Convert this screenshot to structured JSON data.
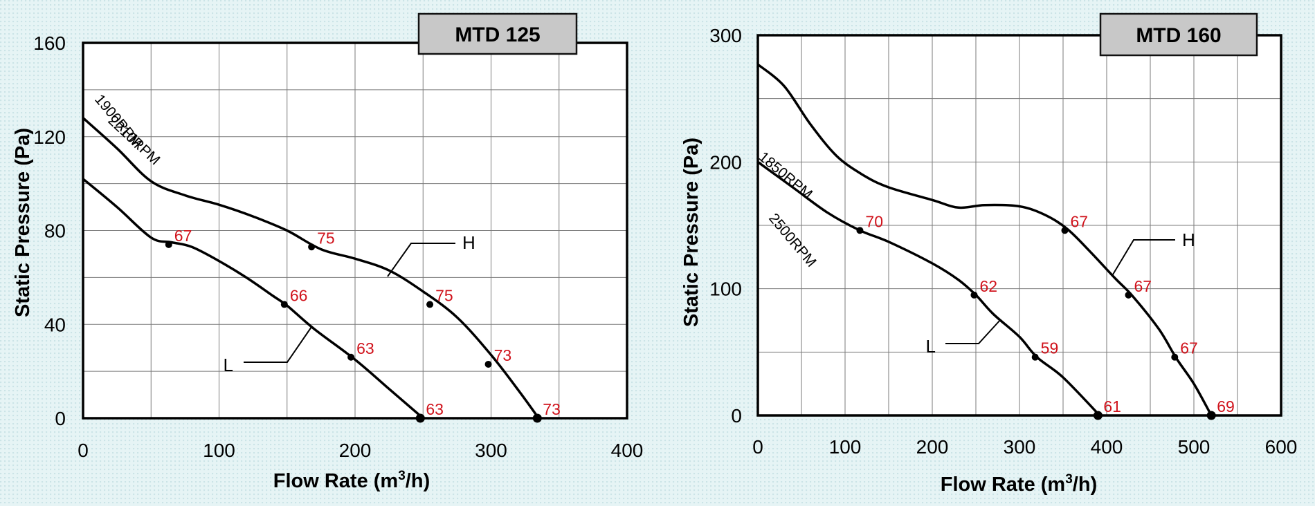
{
  "chart_data": [
    {
      "type": "line",
      "title": "MTD 125",
      "xlabel": "Flow Rate (m",
      "xlabel_sup": "3",
      "xlabel_tail": "/h)",
      "ylabel": "Static Pressure (Pa)",
      "xlim": [
        0,
        400
      ],
      "ylim": [
        0,
        160
      ],
      "x_major_ticks": [
        0,
        100,
        200,
        300,
        400
      ],
      "y_major_ticks": [
        0,
        40,
        80,
        120,
        160
      ],
      "x_grid_step": 50,
      "y_grid_step": 20,
      "grid": true,
      "series": [
        {
          "name": "2210RPM",
          "tag": "H",
          "values": [
            [
              0,
              128
            ],
            [
              25,
              115
            ],
            [
              50,
              101
            ],
            [
              75,
              95
            ],
            [
              100,
              91
            ],
            [
              125,
              86
            ],
            [
              150,
              80
            ],
            [
              175,
              72
            ],
            [
              200,
              68
            ],
            [
              225,
              63
            ],
            [
              250,
              54
            ],
            [
              275,
              43
            ],
            [
              300,
              27
            ],
            [
              320,
              12
            ],
            [
              335,
              0
            ]
          ],
          "markers": [
            {
              "x": 168,
              "y": 73,
              "label": "75"
            },
            {
              "x": 255,
              "y": 48.5,
              "label": "75"
            },
            {
              "x": 298,
              "y": 23,
              "label": "73"
            },
            {
              "x": 334,
              "y": 0,
              "label": "73"
            }
          ]
        },
        {
          "name": "1900RPM",
          "tag": "L",
          "values": [
            [
              0,
              102
            ],
            [
              25,
              90
            ],
            [
              50,
              77
            ],
            [
              65,
              75
            ],
            [
              80,
              73
            ],
            [
              100,
              67
            ],
            [
              120,
              60
            ],
            [
              140,
              52
            ],
            [
              150,
              48
            ],
            [
              170,
              38
            ],
            [
              200,
              25
            ],
            [
              225,
              12.5
            ],
            [
              250,
              0
            ]
          ],
          "markers": [
            {
              "x": 63,
              "y": 74,
              "label": "67"
            },
            {
              "x": 148,
              "y": 48.5,
              "label": "66"
            },
            {
              "x": 197,
              "y": 26,
              "label": "63"
            },
            {
              "x": 248,
              "y": 0,
              "label": "63"
            }
          ]
        }
      ]
    },
    {
      "type": "line",
      "title": "MTD 160",
      "xlabel": "Flow Rate (m",
      "xlabel_sup": "3",
      "xlabel_tail": "/h)",
      "ylabel": "Static Pressure (Pa)",
      "xlim": [
        0,
        600
      ],
      "ylim": [
        0,
        300
      ],
      "x_major_ticks": [
        0,
        100,
        200,
        300,
        400,
        500,
        600
      ],
      "y_major_ticks": [
        0,
        100,
        200,
        300
      ],
      "x_grid_step": 50,
      "y_grid_step": 50,
      "grid": true,
      "series": [
        {
          "name": "2500RPM",
          "tag": "H",
          "values": [
            [
              0,
              277
            ],
            [
              30,
              260
            ],
            [
              60,
              230
            ],
            [
              90,
              205
            ],
            [
              120,
              190
            ],
            [
              150,
              180
            ],
            [
              200,
              170
            ],
            [
              230,
              164
            ],
            [
              260,
              166
            ],
            [
              300,
              165
            ],
            [
              330,
              158
            ],
            [
              355,
              147
            ],
            [
              380,
              130
            ],
            [
              410,
              108
            ],
            [
              430,
              94
            ],
            [
              460,
              68
            ],
            [
              480,
              45
            ],
            [
              500,
              25
            ],
            [
              520,
              0
            ]
          ],
          "markers": [
            {
              "x": 352,
              "y": 146,
              "label": "67"
            },
            {
              "x": 425,
              "y": 95,
              "label": "67"
            },
            {
              "x": 478,
              "y": 46,
              "label": "67"
            },
            {
              "x": 520,
              "y": 0,
              "label": "69"
            }
          ]
        },
        {
          "name": "1850RPM",
          "tag": "L",
          "values": [
            [
              0,
              200
            ],
            [
              40,
              180
            ],
            [
              80,
              160
            ],
            [
              117,
              146
            ],
            [
              150,
              137
            ],
            [
              200,
              120
            ],
            [
              230,
              107
            ],
            [
              250,
              95
            ],
            [
              270,
              80
            ],
            [
              300,
              62
            ],
            [
              320,
              46
            ],
            [
              350,
              30
            ],
            [
              392,
              0
            ]
          ],
          "markers": [
            {
              "x": 117,
              "y": 146,
              "label": "70"
            },
            {
              "x": 248,
              "y": 95,
              "label": "62"
            },
            {
              "x": 318,
              "y": 46,
              "label": "59"
            },
            {
              "x": 390,
              "y": 0,
              "label": "61"
            }
          ]
        }
      ]
    }
  ]
}
